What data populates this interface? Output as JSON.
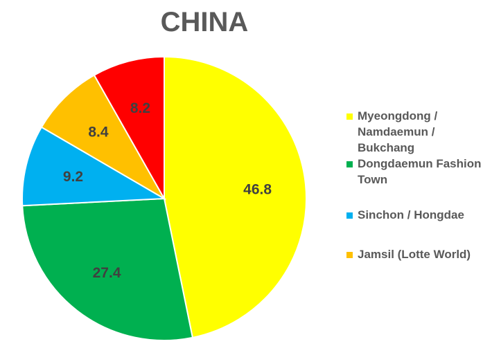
{
  "chart_data": {
    "type": "pie",
    "title": "CHINA",
    "slices": [
      {
        "name": "Myeongdong / Namdaemun / Bukchang",
        "value": 46.8,
        "label": "46.8",
        "color": "#ffff00"
      },
      {
        "name": "Dongdaemun Fashion Town",
        "value": 27.4,
        "label": "27.4",
        "color": "#00b050"
      },
      {
        "name": "Sinchon / Hongdae",
        "value": 9.2,
        "label": "9.2",
        "color": "#00b0f0"
      },
      {
        "name": "Jamsil (Lotte World)",
        "value": 8.4,
        "label": "8.4",
        "color": "#ffc000"
      },
      {
        "name": "",
        "value": 8.2,
        "label": "8.2",
        "color": "#ff0000"
      }
    ],
    "legend_position": "right"
  }
}
